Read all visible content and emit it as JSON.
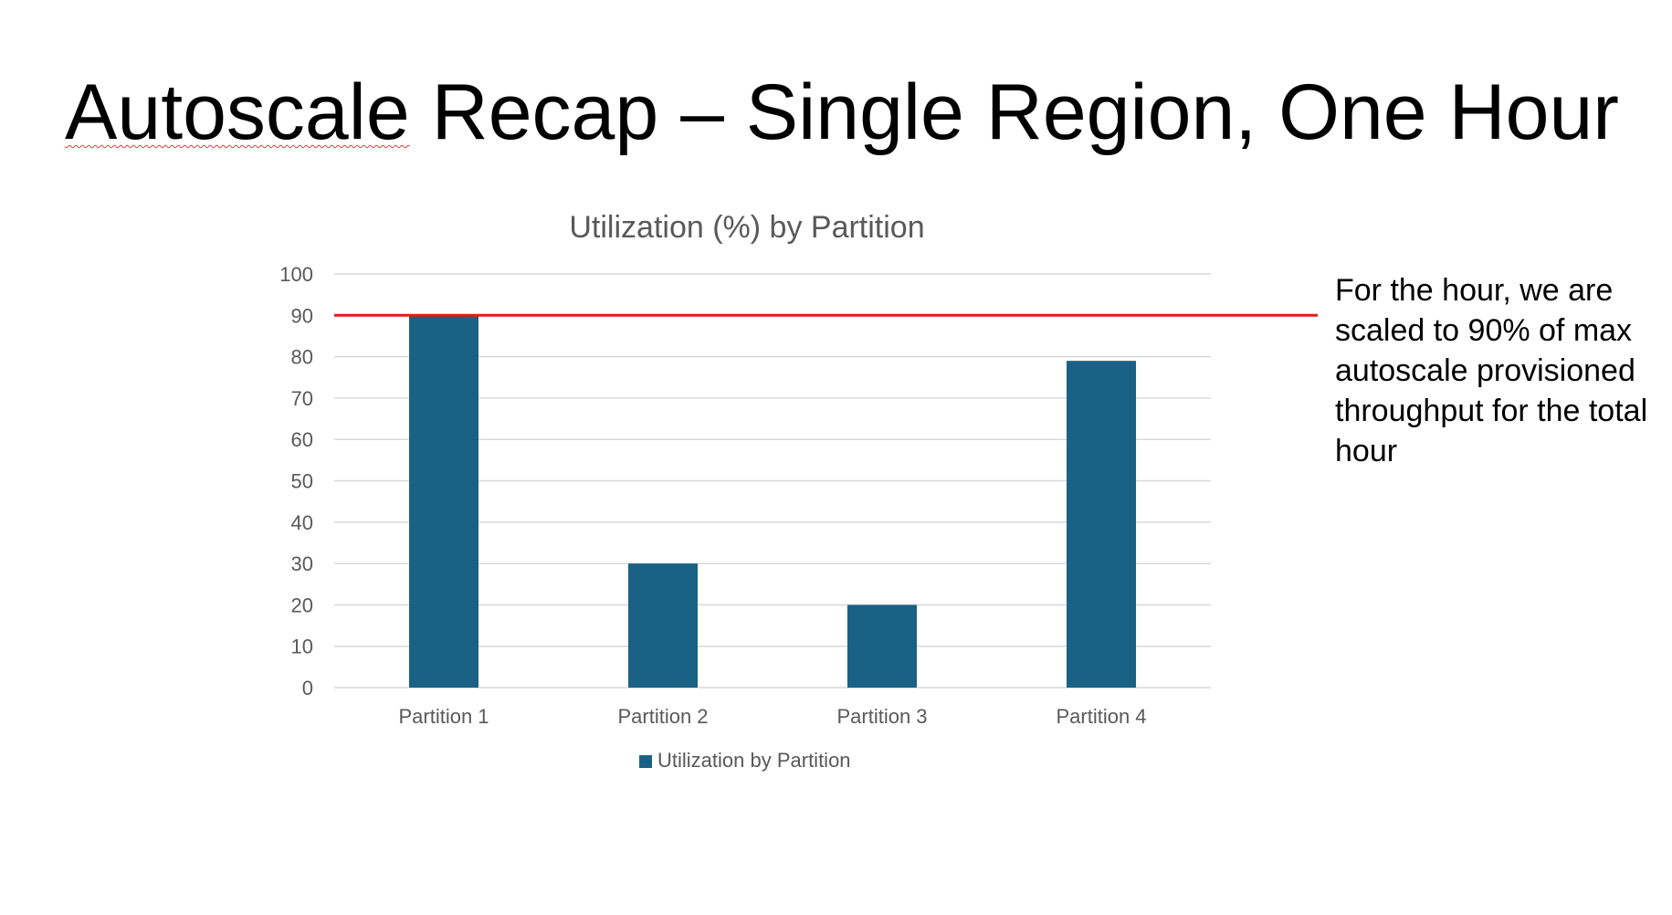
{
  "slide": {
    "title_part1": "Autoscale",
    "title_part2": " Recap – Single Region, One Hour",
    "note": "For the hour, we are scaled to 90% of max autoscale provisioned throughput for the total hour"
  },
  "chart_data": {
    "type": "bar",
    "title": "Utilization (%) by Partition",
    "categories": [
      "Partition 1",
      "Partition 2",
      "Partition 3",
      "Partition 4"
    ],
    "series": [
      {
        "name": "Utilization by Partition",
        "values": [
          90,
          30,
          20,
          79
        ],
        "color": "#1a6285"
      }
    ],
    "ylim": [
      0,
      100
    ],
    "yticks": [
      0,
      10,
      20,
      30,
      40,
      50,
      60,
      70,
      80,
      90,
      100
    ],
    "grid": true,
    "legend": "bottom",
    "reference_line": {
      "value": 90,
      "color": "#e31b1b"
    },
    "colors": {
      "gridline": "#d9d9d9",
      "axis_text": "#595959",
      "title_text": "#595959"
    }
  }
}
